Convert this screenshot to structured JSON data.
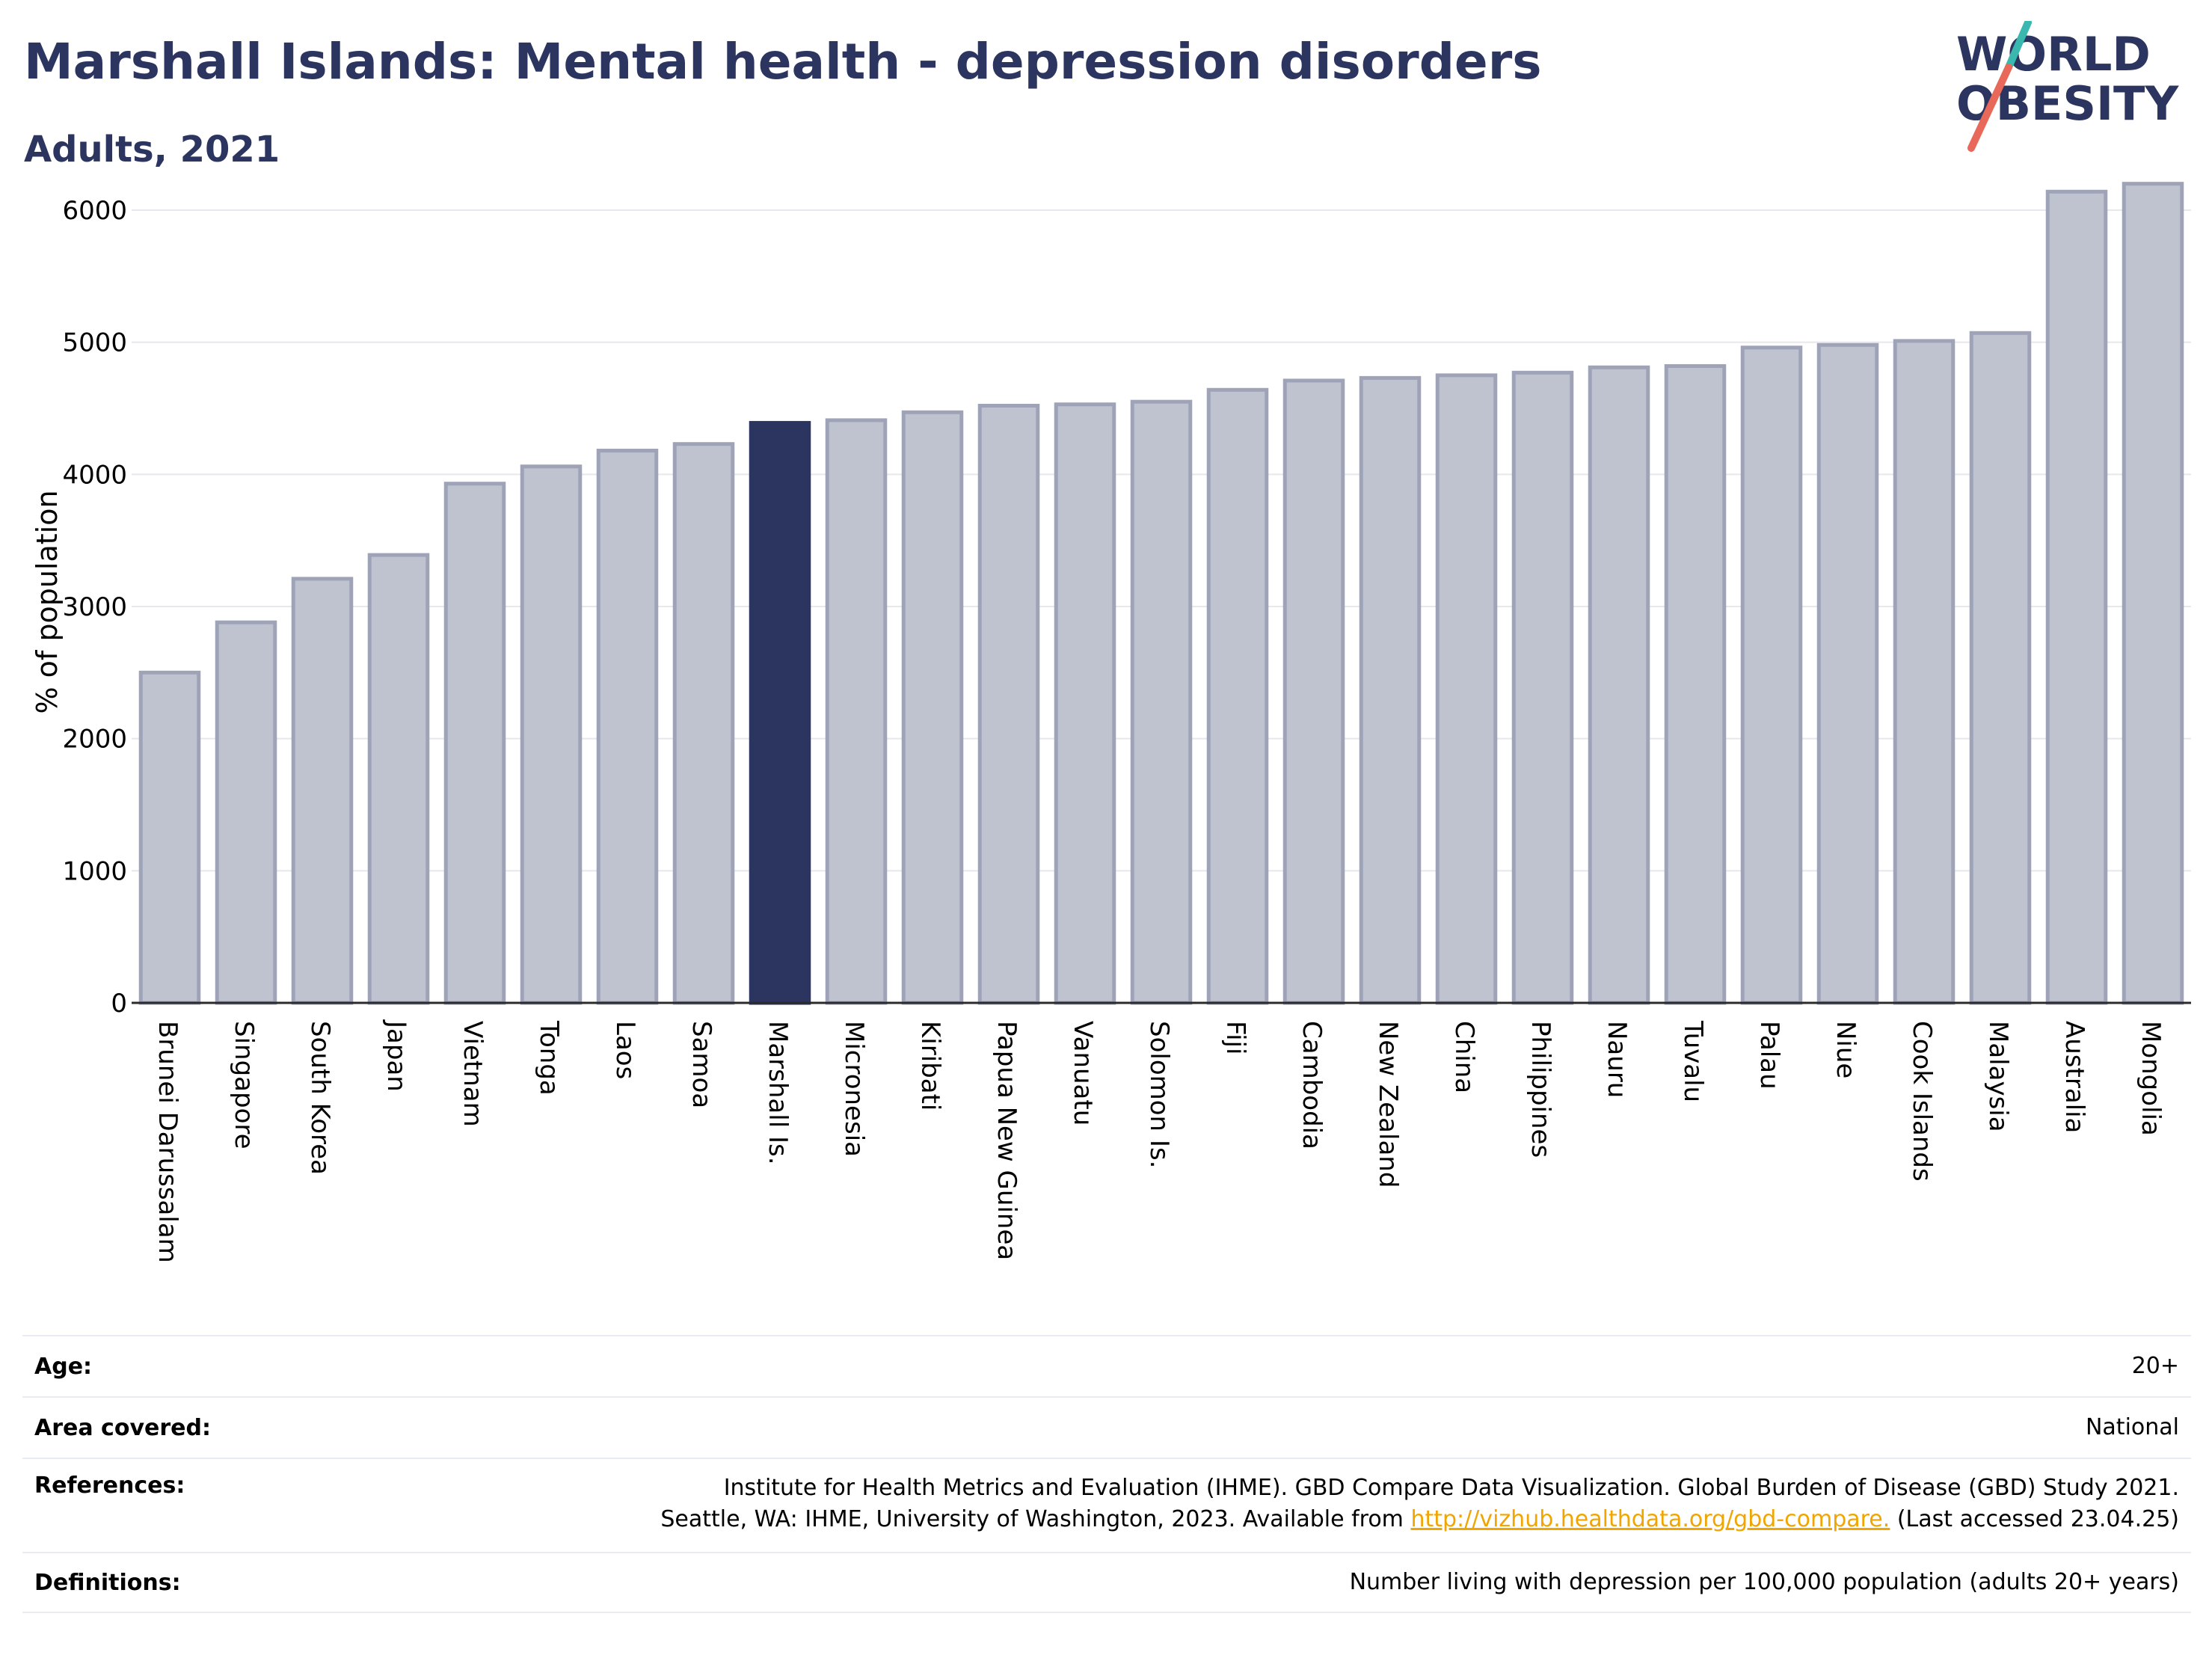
{
  "title": "Marshall Islands: Mental health - depression disorders",
  "subtitle": "Adults, 2021",
  "logo": {
    "line1": "WORLD",
    "line2": "OBESITY"
  },
  "colors": {
    "highlight": "#2b3560",
    "bar": "#bfc2cf",
    "bar_edge": "#9ea3b8",
    "title": "#2b3560",
    "link": "#f0a500"
  },
  "chart_data": {
    "type": "bar",
    "ylabel": "% of population",
    "ylim": [
      0,
      6300
    ],
    "yticks": [
      0,
      1000,
      2000,
      3000,
      4000,
      5000,
      6000
    ],
    "grid": true,
    "highlight": "Marshall Is.",
    "categories": [
      "Brunei Darussalam",
      "Singapore",
      "South Korea",
      "Japan",
      "Vietnam",
      "Tonga",
      "Laos",
      "Samoa",
      "Marshall Is.",
      "Micronesia",
      "Kiribati",
      "Papua New Guinea",
      "Vanuatu",
      "Solomon Is.",
      "Fiji",
      "Cambodia",
      "New Zealand",
      "China",
      "Philippines",
      "Nauru",
      "Tuvalu",
      "Palau",
      "Niue",
      "Cook Islands",
      "Malaysia",
      "Australia",
      "Mongolia"
    ],
    "values": [
      2500,
      2880,
      3210,
      3390,
      3930,
      4060,
      4180,
      4230,
      4390,
      4410,
      4470,
      4520,
      4530,
      4550,
      4640,
      4710,
      4730,
      4750,
      4770,
      4810,
      4820,
      4960,
      4980,
      5010,
      5070,
      6140,
      6200
    ]
  },
  "meta": {
    "age": {
      "label": "Age:",
      "value": "20+"
    },
    "area": {
      "label": "Area covered:",
      "value": "National"
    },
    "references": {
      "label": "References:",
      "line1": "Institute for Health Metrics and Evaluation (IHME). GBD Compare Data Visualization. Global Burden of Disease (GBD) Study 2021.",
      "line2_pre": "Seattle, WA: IHME, University of Washington, 2023. Available from ",
      "link": "http://vizhub.healthdata.org/gbd-compare.",
      "line2_post": " (Last accessed 23.04.25)"
    },
    "definitions": {
      "label": "Definitions:",
      "value": "Number living with depression per 100,000 population (adults 20+ years)"
    }
  }
}
